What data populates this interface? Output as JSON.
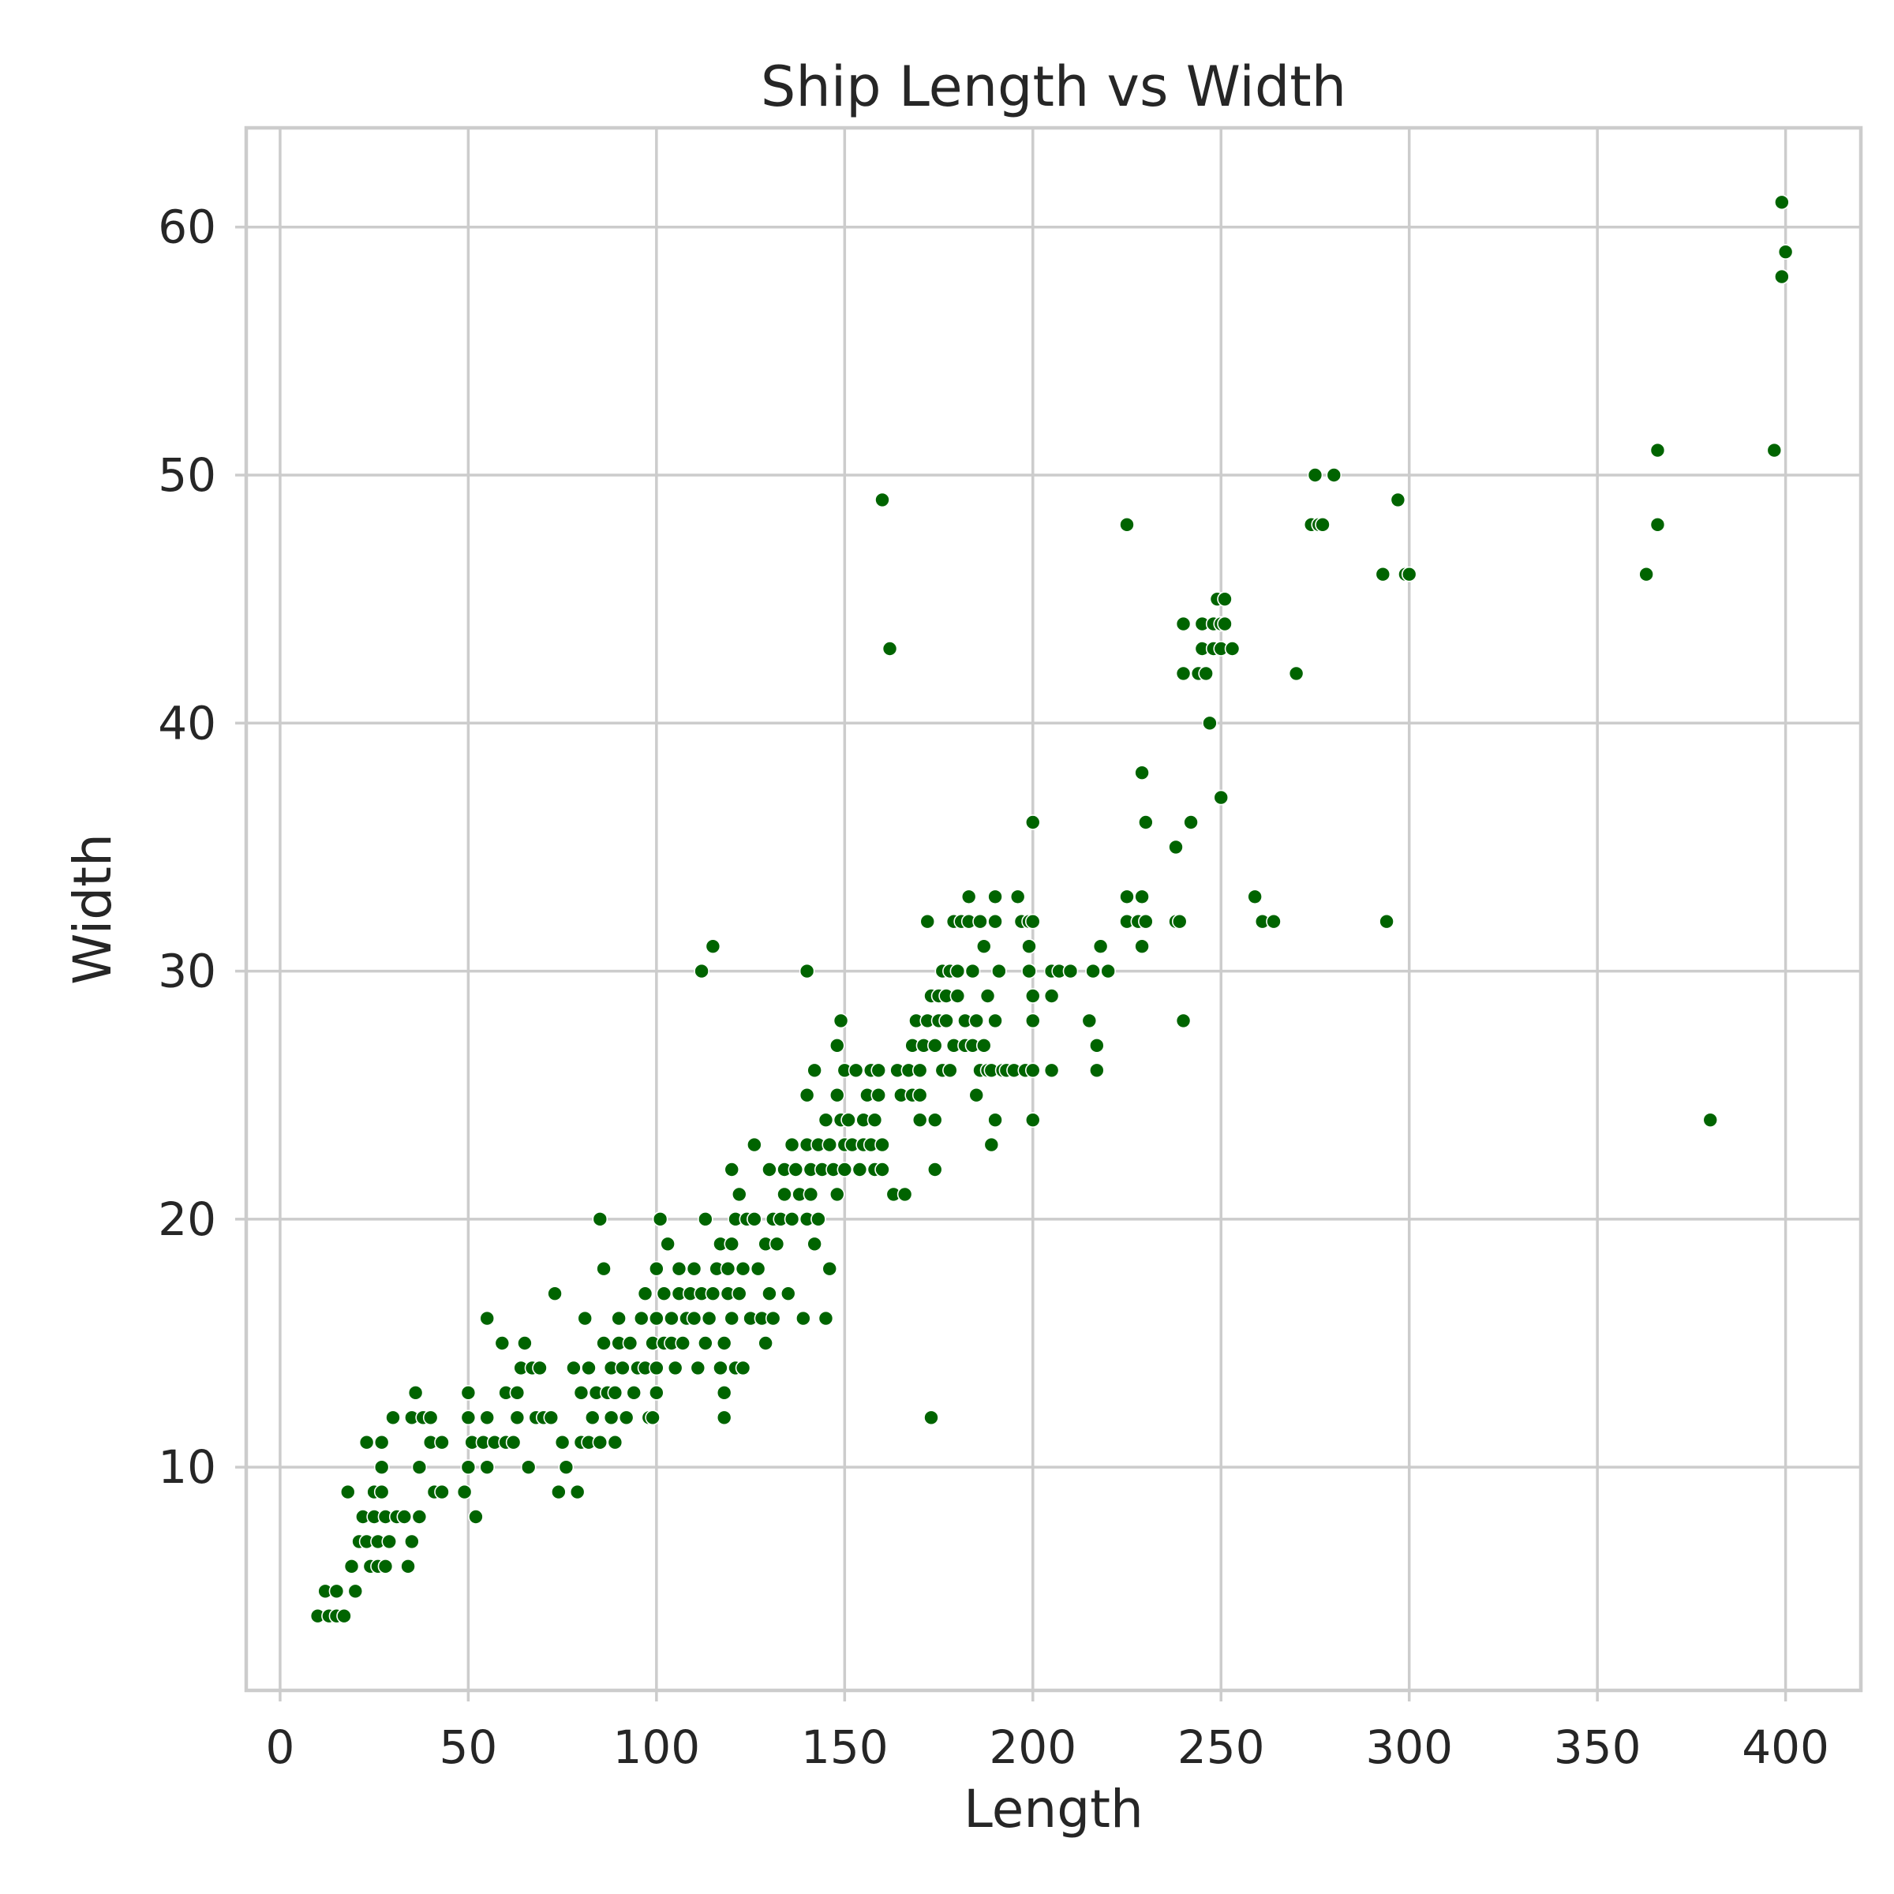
{
  "chart_data": {
    "type": "scatter",
    "title": "Ship Length vs Width",
    "xlabel": "Length",
    "ylabel": "Width",
    "xlim": [
      -9,
      420
    ],
    "ylim": [
      1,
      64
    ],
    "xticks": [
      0,
      50,
      100,
      150,
      200,
      250,
      300,
      350,
      400
    ],
    "yticks": [
      10,
      20,
      30,
      40,
      50,
      60
    ],
    "grid": true,
    "legend": "none",
    "marker_color": "#006400",
    "points": [
      [
        10,
        4
      ],
      [
        12,
        5
      ],
      [
        13,
        4
      ],
      [
        15,
        4
      ],
      [
        15,
        5
      ],
      [
        17,
        4
      ],
      [
        18,
        9
      ],
      [
        19,
        6
      ],
      [
        20,
        5
      ],
      [
        21,
        7
      ],
      [
        22,
        8
      ],
      [
        23,
        7
      ],
      [
        23,
        11
      ],
      [
        24,
        6
      ],
      [
        25,
        8
      ],
      [
        25,
        9
      ],
      [
        26,
        6
      ],
      [
        26,
        7
      ],
      [
        27,
        9
      ],
      [
        27,
        10
      ],
      [
        27,
        11
      ],
      [
        28,
        6
      ],
      [
        28,
        8
      ],
      [
        29,
        7
      ],
      [
        30,
        12
      ],
      [
        31,
        8
      ],
      [
        33,
        8
      ],
      [
        34,
        6
      ],
      [
        35,
        7
      ],
      [
        35,
        12
      ],
      [
        36,
        13
      ],
      [
        37,
        8
      ],
      [
        37,
        10
      ],
      [
        38,
        12
      ],
      [
        40,
        11
      ],
      [
        40,
        12
      ],
      [
        41,
        9
      ],
      [
        43,
        9
      ],
      [
        43,
        11
      ],
      [
        49,
        9
      ],
      [
        50,
        10
      ],
      [
        50,
        12
      ],
      [
        50,
        13
      ],
      [
        51,
        11
      ],
      [
        52,
        8
      ],
      [
        54,
        11
      ],
      [
        55,
        10
      ],
      [
        55,
        12
      ],
      [
        55,
        16
      ],
      [
        57,
        11
      ],
      [
        59,
        15
      ],
      [
        60,
        13
      ],
      [
        60,
        11
      ],
      [
        62,
        11
      ],
      [
        63,
        12
      ],
      [
        63,
        13
      ],
      [
        64,
        14
      ],
      [
        65,
        15
      ],
      [
        66,
        10
      ],
      [
        67,
        14
      ],
      [
        68,
        12
      ],
      [
        69,
        14
      ],
      [
        70,
        12
      ],
      [
        72,
        12
      ],
      [
        73,
        17
      ],
      [
        74,
        9
      ],
      [
        75,
        11
      ],
      [
        76,
        10
      ],
      [
        78,
        14
      ],
      [
        79,
        9
      ],
      [
        80,
        11
      ],
      [
        80,
        13
      ],
      [
        81,
        16
      ],
      [
        82,
        11
      ],
      [
        82,
        14
      ],
      [
        83,
        12
      ],
      [
        84,
        13
      ],
      [
        85,
        20
      ],
      [
        85,
        11
      ],
      [
        86,
        18
      ],
      [
        86,
        15
      ],
      [
        87,
        13
      ],
      [
        88,
        12
      ],
      [
        88,
        14
      ],
      [
        89,
        11
      ],
      [
        89,
        13
      ],
      [
        90,
        15
      ],
      [
        90,
        16
      ],
      [
        91,
        14
      ],
      [
        92,
        12
      ],
      [
        93,
        15
      ],
      [
        94,
        13
      ],
      [
        95,
        14
      ],
      [
        96,
        16
      ],
      [
        97,
        14
      ],
      [
        97,
        17
      ],
      [
        98,
        12
      ],
      [
        99,
        12
      ],
      [
        99,
        15
      ],
      [
        100,
        13
      ],
      [
        100,
        14
      ],
      [
        100,
        16
      ],
      [
        100,
        18
      ],
      [
        101,
        20
      ],
      [
        102,
        17
      ],
      [
        102,
        15
      ],
      [
        103,
        19
      ],
      [
        104,
        15
      ],
      [
        104,
        16
      ],
      [
        105,
        14
      ],
      [
        106,
        17
      ],
      [
        106,
        18
      ],
      [
        107,
        15
      ],
      [
        108,
        16
      ],
      [
        109,
        17
      ],
      [
        110,
        18
      ],
      [
        110,
        16
      ],
      [
        111,
        14
      ],
      [
        112,
        17
      ],
      [
        112,
        30
      ],
      [
        113,
        15
      ],
      [
        113,
        20
      ],
      [
        114,
        16
      ],
      [
        115,
        17
      ],
      [
        115,
        31
      ],
      [
        116,
        18
      ],
      [
        117,
        19
      ],
      [
        117,
        14
      ],
      [
        118,
        15
      ],
      [
        118,
        12
      ],
      [
        118,
        13
      ],
      [
        119,
        17
      ],
      [
        119,
        18
      ],
      [
        120,
        19
      ],
      [
        120,
        22
      ],
      [
        120,
        16
      ],
      [
        121,
        14
      ],
      [
        121,
        20
      ],
      [
        122,
        17
      ],
      [
        122,
        21
      ],
      [
        123,
        18
      ],
      [
        123,
        14
      ],
      [
        124,
        20
      ],
      [
        125,
        16
      ],
      [
        126,
        23
      ],
      [
        126,
        20
      ],
      [
        127,
        18
      ],
      [
        128,
        16
      ],
      [
        129,
        19
      ],
      [
        129,
        15
      ],
      [
        130,
        22
      ],
      [
        130,
        17
      ],
      [
        131,
        20
      ],
      [
        131,
        16
      ],
      [
        132,
        19
      ],
      [
        133,
        20
      ],
      [
        134,
        21
      ],
      [
        134,
        22
      ],
      [
        135,
        17
      ],
      [
        136,
        23
      ],
      [
        136,
        20
      ],
      [
        137,
        22
      ],
      [
        138,
        21
      ],
      [
        139,
        16
      ],
      [
        140,
        25
      ],
      [
        140,
        23
      ],
      [
        140,
        20
      ],
      [
        140,
        30
      ],
      [
        141,
        21
      ],
      [
        141,
        22
      ],
      [
        142,
        19
      ],
      [
        142,
        26
      ],
      [
        143,
        23
      ],
      [
        143,
        20
      ],
      [
        144,
        22
      ],
      [
        145,
        24
      ],
      [
        145,
        16
      ],
      [
        146,
        23
      ],
      [
        146,
        18
      ],
      [
        147,
        22
      ],
      [
        148,
        25
      ],
      [
        148,
        21
      ],
      [
        148,
        27
      ],
      [
        149,
        24
      ],
      [
        149,
        28
      ],
      [
        150,
        22
      ],
      [
        150,
        26
      ],
      [
        150,
        23
      ],
      [
        151,
        24
      ],
      [
        152,
        23
      ],
      [
        153,
        26
      ],
      [
        154,
        22
      ],
      [
        155,
        24
      ],
      [
        155,
        23
      ],
      [
        156,
        25
      ],
      [
        157,
        26
      ],
      [
        157,
        23
      ],
      [
        158,
        22
      ],
      [
        158,
        24
      ],
      [
        159,
        25
      ],
      [
        159,
        26
      ],
      [
        160,
        22
      ],
      [
        160,
        23
      ],
      [
        160,
        49
      ],
      [
        162,
        43
      ],
      [
        163,
        21
      ],
      [
        164,
        26
      ],
      [
        165,
        25
      ],
      [
        166,
        21
      ],
      [
        167,
        26
      ],
      [
        168,
        25
      ],
      [
        168,
        27
      ],
      [
        169,
        28
      ],
      [
        170,
        26
      ],
      [
        170,
        25
      ],
      [
        170,
        24
      ],
      [
        171,
        27
      ],
      [
        172,
        28
      ],
      [
        172,
        32
      ],
      [
        173,
        29
      ],
      [
        173,
        12
      ],
      [
        174,
        22
      ],
      [
        174,
        24
      ],
      [
        174,
        27
      ],
      [
        175,
        28
      ],
      [
        175,
        29
      ],
      [
        176,
        26
      ],
      [
        176,
        30
      ],
      [
        177,
        29
      ],
      [
        177,
        28
      ],
      [
        178,
        26
      ],
      [
        178,
        30
      ],
      [
        179,
        27
      ],
      [
        179,
        32
      ],
      [
        180,
        29
      ],
      [
        180,
        30
      ],
      [
        181,
        32
      ],
      [
        182,
        28
      ],
      [
        182,
        27
      ],
      [
        183,
        33
      ],
      [
        183,
        32
      ],
      [
        184,
        27
      ],
      [
        184,
        30
      ],
      [
        185,
        25
      ],
      [
        185,
        28
      ],
      [
        186,
        26
      ],
      [
        186,
        32
      ],
      [
        187,
        27
      ],
      [
        187,
        31
      ],
      [
        188,
        26
      ],
      [
        188,
        29
      ],
      [
        189,
        23
      ],
      [
        189,
        26
      ],
      [
        190,
        24
      ],
      [
        190,
        32
      ],
      [
        190,
        33
      ],
      [
        190,
        28
      ],
      [
        191,
        30
      ],
      [
        192,
        26
      ],
      [
        193,
        26
      ],
      [
        195,
        26
      ],
      [
        196,
        33
      ],
      [
        197,
        32
      ],
      [
        198,
        26
      ],
      [
        199,
        31
      ],
      [
        199,
        32
      ],
      [
        199,
        30
      ],
      [
        200,
        36
      ],
      [
        200,
        29
      ],
      [
        200,
        28
      ],
      [
        200,
        24
      ],
      [
        200,
        26
      ],
      [
        200,
        32
      ],
      [
        205,
        26
      ],
      [
        205,
        29
      ],
      [
        205,
        30
      ],
      [
        207,
        30
      ],
      [
        210,
        30
      ],
      [
        215,
        28
      ],
      [
        216,
        30
      ],
      [
        217,
        27
      ],
      [
        217,
        26
      ],
      [
        218,
        31
      ],
      [
        220,
        30
      ],
      [
        225,
        32
      ],
      [
        225,
        33
      ],
      [
        225,
        48
      ],
      [
        228,
        32
      ],
      [
        229,
        31
      ],
      [
        229,
        33
      ],
      [
        229,
        38
      ],
      [
        230,
        32
      ],
      [
        230,
        36
      ],
      [
        238,
        35
      ],
      [
        238,
        32
      ],
      [
        239,
        32
      ],
      [
        240,
        28
      ],
      [
        240,
        44
      ],
      [
        240,
        42
      ],
      [
        242,
        36
      ],
      [
        244,
        42
      ],
      [
        245,
        43
      ],
      [
        245,
        44
      ],
      [
        246,
        42
      ],
      [
        247,
        40
      ],
      [
        248,
        43
      ],
      [
        248,
        44
      ],
      [
        249,
        45
      ],
      [
        250,
        37
      ],
      [
        250,
        44
      ],
      [
        250,
        43
      ],
      [
        251,
        45
      ],
      [
        251,
        44
      ],
      [
        253,
        43
      ],
      [
        259,
        33
      ],
      [
        261,
        32
      ],
      [
        264,
        32
      ],
      [
        270,
        42
      ],
      [
        274,
        48
      ],
      [
        275,
        50
      ],
      [
        276,
        48
      ],
      [
        277,
        48
      ],
      [
        280,
        50
      ],
      [
        293,
        46
      ],
      [
        294,
        32
      ],
      [
        297,
        49
      ],
      [
        299,
        46
      ],
      [
        300,
        46
      ],
      [
        363,
        46
      ],
      [
        366,
        51
      ],
      [
        366,
        48
      ],
      [
        380,
        24
      ],
      [
        397,
        51
      ],
      [
        399,
        58
      ],
      [
        399,
        61
      ],
      [
        400,
        59
      ]
    ]
  }
}
